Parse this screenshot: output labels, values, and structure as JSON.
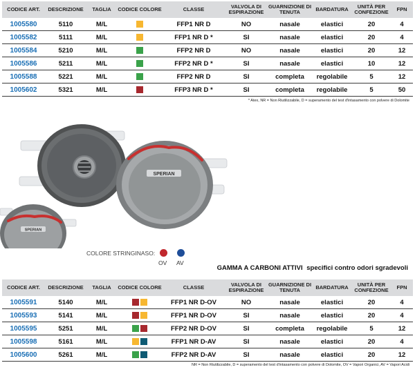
{
  "headers": {
    "code": "CODICE ART.",
    "desc": "DESCRIZIONE",
    "size": "TAGLIA",
    "color": "CODICE COLORE",
    "class": "CLASSE",
    "valve_1": "VALVOLA DI",
    "valve_2": "ESPIRAZIONE",
    "seal_1": "GUARNIZIONE DI",
    "seal_2": "TENUTA",
    "band": "BARDATURA",
    "units_1": "UNITÀ PER",
    "units_2": "CONFEZIONE",
    "fpn": "FPN"
  },
  "colors": {
    "orange": "#f7b731",
    "green": "#3aa24a",
    "darkred": "#a7282e",
    "teal": "#0f5b74",
    "ov_dot": "#c0272d",
    "av_dot": "#1f4e99",
    "code_blue": "#1a6fb5",
    "header_bg": "#dadbdd"
  },
  "table1": [
    {
      "code": "1005580",
      "desc": "5110",
      "size": "M/L",
      "swatches": [
        "orange"
      ],
      "class": "FFP1 NR D",
      "valve": "NO",
      "seal": "nasale",
      "band": "elastici",
      "units": "20",
      "fpn": "4"
    },
    {
      "code": "1005582",
      "desc": "5111",
      "size": "M/L",
      "swatches": [
        "orange"
      ],
      "class": "FFP1 NR D *",
      "valve": "SI",
      "seal": "nasale",
      "band": "elastici",
      "units": "20",
      "fpn": "4"
    },
    {
      "code": "1005584",
      "desc": "5210",
      "size": "M/L",
      "swatches": [
        "green"
      ],
      "class": "FFP2 NR D",
      "valve": "NO",
      "seal": "nasale",
      "band": "elastici",
      "units": "20",
      "fpn": "12"
    },
    {
      "code": "1005586",
      "desc": "5211",
      "size": "M/L",
      "swatches": [
        "green"
      ],
      "class": "FFP2 NR D *",
      "valve": "SI",
      "seal": "nasale",
      "band": "elastici",
      "units": "10",
      "fpn": "12"
    },
    {
      "code": "1005588",
      "desc": "5221",
      "size": "M/L",
      "swatches": [
        "green"
      ],
      "class": "FFP2 NR D",
      "valve": "SI",
      "seal": "completa",
      "band": "regolabile",
      "units": "5",
      "fpn": "12"
    },
    {
      "code": "1005602",
      "desc": "5321",
      "size": "M/L",
      "swatches": [
        "darkred"
      ],
      "class": "FFP3 NR D *",
      "valve": "SI",
      "seal": "completa",
      "band": "regolabile",
      "units": "5",
      "fpn": "50"
    }
  ],
  "note1": "* Atex, NR = Non Riutilizzabile, D = superamento del test d'intasamento con polvere di Dolomite",
  "legend": {
    "label": "COLORE STRINGINASO:",
    "ov": "OV",
    "av": "AV"
  },
  "section_title": {
    "main": "GAMMA A CARBONI ATTIVI",
    "sub": "specifici contro odori sgradevoli"
  },
  "table2": [
    {
      "code": "1005591",
      "desc": "5140",
      "size": "M/L",
      "swatches": [
        "darkred",
        "orange"
      ],
      "class": "FFP1 NR D-OV",
      "valve": "NO",
      "seal": "nasale",
      "band": "elastici",
      "units": "20",
      "fpn": "4"
    },
    {
      "code": "1005593",
      "desc": "5141",
      "size": "M/L",
      "swatches": [
        "darkred",
        "orange"
      ],
      "class": "FFP1 NR D-OV",
      "valve": "SI",
      "seal": "nasale",
      "band": "elastici",
      "units": "20",
      "fpn": "4"
    },
    {
      "code": "1005595",
      "desc": "5251",
      "size": "M/L",
      "swatches": [
        "green",
        "darkred"
      ],
      "class": "FFP2 NR D-OV",
      "valve": "SI",
      "seal": "completa",
      "band": "regolabile",
      "units": "5",
      "fpn": "12"
    },
    {
      "code": "1005598",
      "desc": "5161",
      "size": "M/L",
      "swatches": [
        "orange",
        "teal"
      ],
      "class": "FFP1 NR D-AV",
      "valve": "SI",
      "seal": "nasale",
      "band": "elastici",
      "units": "20",
      "fpn": "4"
    },
    {
      "code": "1005600",
      "desc": "5261",
      "size": "M/L",
      "swatches": [
        "green",
        "teal"
      ],
      "class": "FFP2 NR D-AV",
      "valve": "SI",
      "seal": "nasale",
      "band": "elastici",
      "units": "20",
      "fpn": "12"
    }
  ],
  "note2": "NR = Non Riutilizzabile, D = superamento del test d'intasamento con polvere di Dolomite, OV = Vapori Organici, AV = Vapori Acidi",
  "product": {
    "brand": "SPERIAN"
  }
}
